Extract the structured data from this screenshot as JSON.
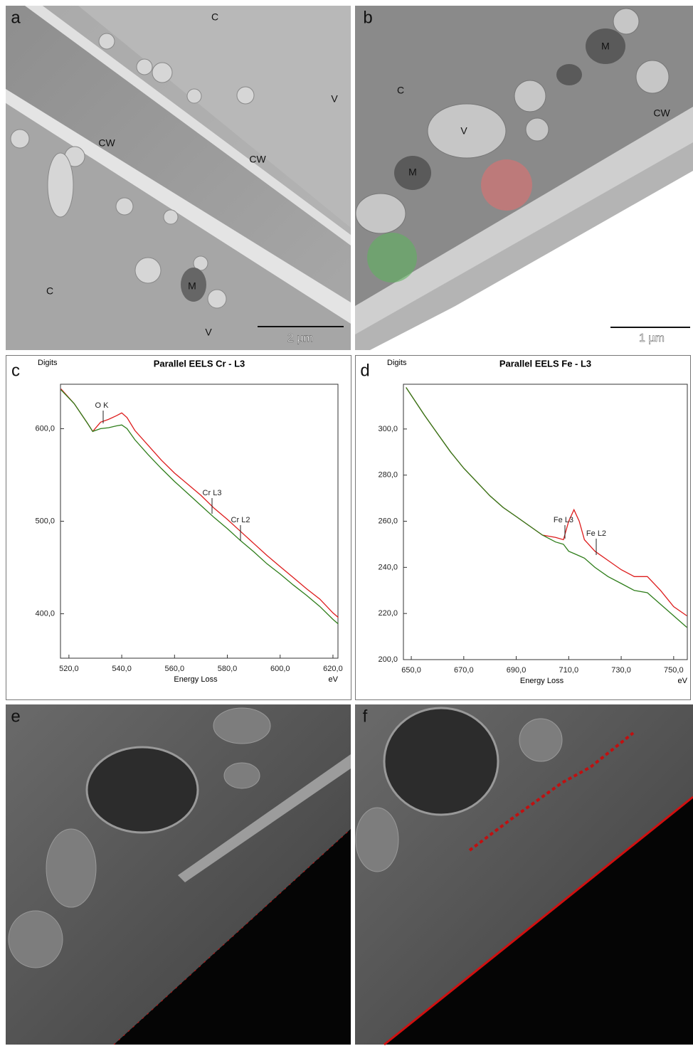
{
  "panels": {
    "a": {
      "letter": "a",
      "labels": [
        "C",
        "CW",
        "CW",
        "V",
        "C",
        "M",
        "V"
      ],
      "scale": "2 µm"
    },
    "b": {
      "letter": "b",
      "labels": [
        "M",
        "C",
        "CW",
        "V",
        "M"
      ],
      "scale": "1 µm"
    },
    "e": {
      "letter": "e"
    },
    "f": {
      "letter": "f"
    }
  },
  "chart_data": [
    {
      "type": "line",
      "panel_label": "c",
      "title": "Parallel EELS Cr - L3",
      "y_label": "Digits",
      "x_label": "Energy Loss",
      "x_unit": "eV",
      "annotations": [
        "O K",
        "Cr L3",
        "Cr L2"
      ],
      "x": [
        517,
        522,
        527,
        529,
        532,
        535,
        538,
        540,
        542,
        545,
        550,
        555,
        560,
        565,
        570,
        575,
        580,
        585,
        590,
        595,
        600,
        605,
        610,
        615,
        620,
        622
      ],
      "series": [
        {
          "color": "#dd1c1c",
          "values": [
            643,
            627,
            606,
            597,
            607,
            610,
            614,
            617,
            612,
            598,
            582,
            566,
            552,
            540,
            528,
            514,
            502,
            489,
            476,
            463,
            451,
            439,
            427,
            416,
            401,
            396
          ]
        },
        {
          "color": "#2e7d1a",
          "values": [
            642,
            627,
            606,
            597,
            600,
            601,
            603,
            604,
            600,
            588,
            572,
            557,
            543,
            530,
            517,
            504,
            492,
            479,
            467,
            454,
            443,
            431,
            420,
            408,
            394,
            389
          ]
        }
      ],
      "xlim": [
        516.8,
        621.9
      ],
      "ylim": [
        352,
        648
      ],
      "xticks": [
        {
          "value": 520,
          "label": "520,0"
        },
        {
          "value": 540,
          "label": "540,0"
        },
        {
          "value": 560,
          "label": "560,0"
        },
        {
          "value": 580,
          "label": "580,0"
        },
        {
          "value": 600,
          "label": "600,0"
        },
        {
          "value": 620,
          "label": "620,0"
        }
      ],
      "yticks": [
        {
          "value": 400,
          "label": "400,0"
        },
        {
          "value": 500,
          "label": "500,0"
        },
        {
          "value": 600,
          "label": "600,0"
        }
      ]
    },
    {
      "type": "line",
      "panel_label": "d",
      "title": "Parallel EELS Fe - L3",
      "y_label": "Digits",
      "x_label": "Energy Loss",
      "x_unit": "eV",
      "annotations": [
        "Fe L3",
        "Fe L2"
      ],
      "x": [
        648,
        655,
        660,
        665,
        670,
        675,
        680,
        685,
        690,
        695,
        700,
        705,
        708,
        710,
        712,
        714,
        716,
        720,
        725,
        730,
        735,
        740,
        745,
        750,
        755
      ],
      "series": [
        {
          "color": "#dd1c1c",
          "values": [
            318,
            306,
            298,
            290,
            283,
            277,
            271,
            266,
            262,
            258,
            254,
            253,
            252,
            260,
            265,
            260,
            252,
            247,
            243,
            239,
            236,
            236,
            230,
            223,
            219
          ]
        },
        {
          "color": "#2e7d1a",
          "values": [
            318,
            306,
            298,
            290,
            283,
            277,
            271,
            266,
            262,
            258,
            254,
            251,
            250,
            247,
            246,
            245,
            244,
            240,
            236,
            233,
            230,
            229,
            224,
            219,
            214
          ]
        }
      ],
      "xlim": [
        647,
        755.2
      ],
      "ylim": [
        200,
        319.4
      ],
      "xticks": [
        {
          "value": 650,
          "label": "650,0"
        },
        {
          "value": 670,
          "label": "670,0"
        },
        {
          "value": 690,
          "label": "690,0"
        },
        {
          "value": 710,
          "label": "710,0"
        },
        {
          "value": 730,
          "label": "730,0"
        },
        {
          "value": 750,
          "label": "750,0"
        }
      ],
      "yticks": [
        {
          "value": 200,
          "label": "200,0"
        },
        {
          "value": 220,
          "label": "220,0"
        },
        {
          "value": 240,
          "label": "240,0"
        },
        {
          "value": 260,
          "label": "260,0"
        },
        {
          "value": 280,
          "label": "280,0"
        },
        {
          "value": 300,
          "label": "300,0"
        }
      ]
    }
  ]
}
